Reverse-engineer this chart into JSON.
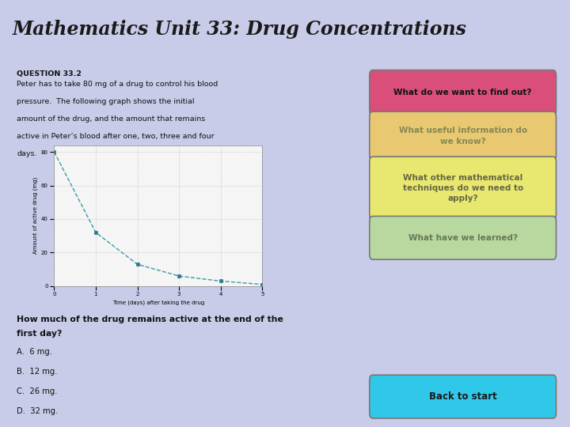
{
  "title": "Mathematics Unit 33: Drug Concentrations",
  "title_bg": "#e8e0c0",
  "title_color": "#1a1a1a",
  "main_bg": "#c8cce8",
  "left_panel_bg": "#ffffff",
  "question_label": "QUESTION 33.2",
  "question_text_line1": "Peter has to take 80 mg of a drug to control his blood",
  "question_text_line2": "pressure.  The following graph shows the initial",
  "question_text_line3": "amount of the drug, and the amount that remains",
  "question_text_line4": "active in Peter’s blood after one, two, three and four",
  "question_text_line5": "days.",
  "graph_x": [
    0,
    1,
    2,
    3,
    4,
    5
  ],
  "graph_y": [
    80,
    32,
    13,
    6,
    3,
    1
  ],
  "graph_xlabel": "Time (days) after taking the drug",
  "graph_ylabel": "Amount of active drug (mg)",
  "graph_yticks": [
    0,
    20,
    40,
    60,
    80
  ],
  "graph_xticks": [
    0,
    1,
    2,
    3,
    4,
    5
  ],
  "graph_line_color": "#3a9aaa",
  "graph_marker_color": "#2a7a8a",
  "bottom_question": "How much of the drug remains active at the end of the",
  "bottom_question2": "first day?",
  "answers": [
    "A.  6 mg.",
    "B.  12 mg.",
    "C.  26 mg.",
    "D.  32 mg."
  ],
  "btn1_text": "What do we want to find out?",
  "btn1_bg": "#d94f7a",
  "btn1_fg": "#1a1a1a",
  "btn2_text": "What useful information do\nwe know?",
  "btn2_bg": "#e8c870",
  "btn2_fg": "#888855",
  "btn3_text": "What other mathematical\ntechniques do we need to\napply?",
  "btn3_bg": "#e8e870",
  "btn3_fg": "#666644",
  "btn4_text": "What have we learned?",
  "btn4_bg": "#b8d8a0",
  "btn4_fg": "#667755",
  "btn5_text": "Back to start",
  "btn5_bg": "#30c8e8",
  "btn5_fg": "#1a1a1a"
}
